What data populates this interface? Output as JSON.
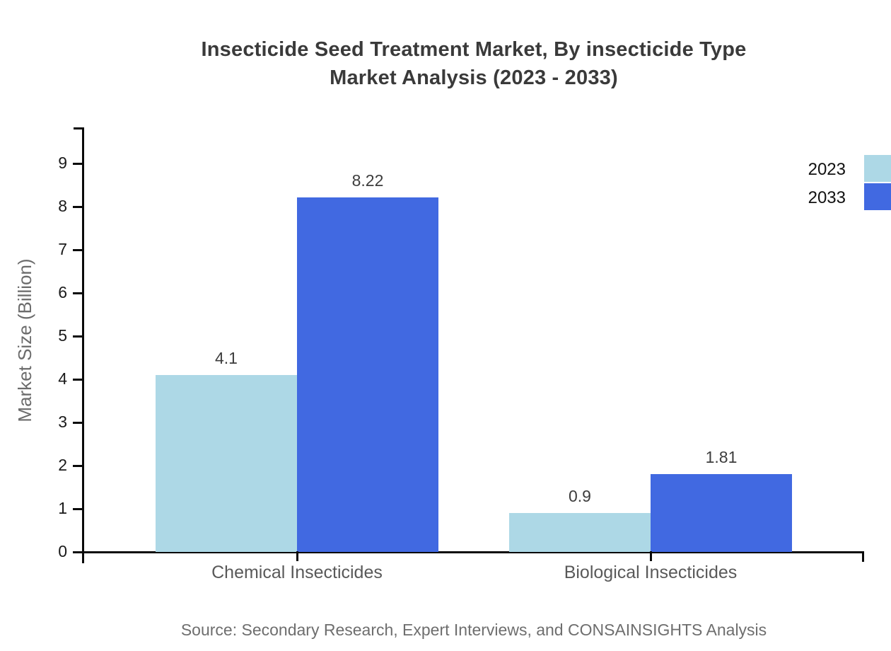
{
  "title": {
    "line1": "Insecticide Seed Treatment Market, By insecticide Type",
    "line2": "Market Analysis (2023 - 2033)"
  },
  "chart_data": {
    "type": "bar",
    "categories": [
      "Chemical Insecticides",
      "Biological Insecticides"
    ],
    "series": [
      {
        "name": "2023",
        "color": "#add8e6",
        "values": [
          4.1,
          0.9
        ],
        "value_labels": [
          "4.1",
          "0.9"
        ]
      },
      {
        "name": "2033",
        "color": "#4169e1",
        "values": [
          8.22,
          1.81
        ],
        "value_labels": [
          "8.22",
          "1.81"
        ]
      }
    ],
    "ylabel": "Market Size (Billion)",
    "xlabel": "",
    "yticks": [
      0,
      1,
      2,
      3,
      4,
      5,
      6,
      7,
      8,
      9
    ],
    "ylim": [
      0,
      9.84
    ],
    "grid": false,
    "legend_position": "top-right",
    "bar_value_labels_shown": true
  },
  "legend": {
    "items": [
      {
        "label": "2023",
        "color": "#add8e6"
      },
      {
        "label": "2033",
        "color": "#4169e1"
      }
    ]
  },
  "source_note": "Source: Secondary Research, Expert Interviews, and CONSAINSIGHTS Analysis",
  "colors": {
    "series_2023": "#add8e6",
    "series_2033": "#4169e1",
    "axis": "#0a0a0a",
    "title_text": "#3a3a3a",
    "tick_text": "#1a1a1a",
    "category_text": "#595959",
    "muted_text": "#6e6e6e"
  }
}
